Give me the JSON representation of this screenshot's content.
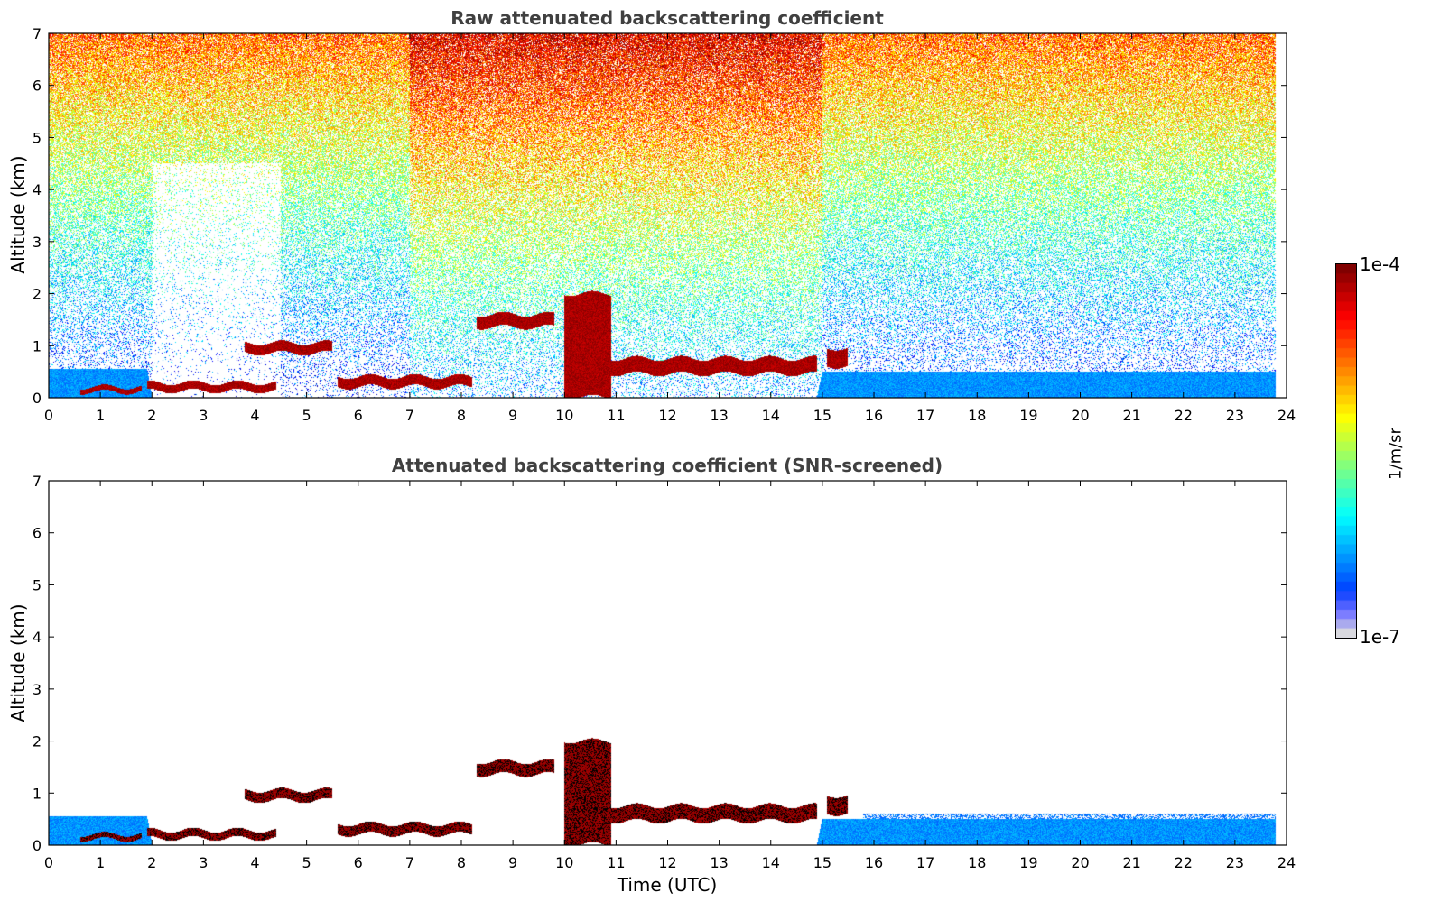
{
  "chart_data": [
    {
      "type": "heatmap",
      "title": "Raw attenuated backscattering coefficient",
      "xlabel": "",
      "ylabel": "Altitude (km)",
      "xlim": [
        0,
        24
      ],
      "ylim": [
        0,
        7
      ],
      "xticks": [
        "0",
        "1",
        "2",
        "3",
        "4",
        "5",
        "6",
        "7",
        "8",
        "9",
        "10",
        "11",
        "12",
        "13",
        "14",
        "15",
        "16",
        "17",
        "18",
        "19",
        "20",
        "21",
        "22",
        "23",
        "24"
      ],
      "yticks": [
        "0",
        "1",
        "2",
        "3",
        "4",
        "5",
        "6",
        "7"
      ],
      "data_extent_hours": [
        0,
        23.8
      ],
      "surface_layer_top_km": [
        [
          0,
          0.55
        ],
        [
          1.9,
          0.55
        ],
        [
          2.0,
          0.0
        ],
        [
          4.5,
          0.0
        ],
        [
          4.6,
          0.0
        ],
        [
          14.9,
          0.0
        ],
        [
          15.0,
          0.5
        ],
        [
          23.8,
          0.5
        ]
      ],
      "cloud_layers": [
        {
          "x": [
            0.6,
            1.8
          ],
          "base_km": 0.1,
          "top_km": 0.2
        },
        {
          "x": [
            1.9,
            4.4
          ],
          "base_km": 0.12,
          "top_km": 0.28
        },
        {
          "x": [
            3.8,
            5.5
          ],
          "base_km": 0.85,
          "top_km": 1.05
        },
        {
          "x": [
            5.6,
            8.2
          ],
          "base_km": 0.2,
          "top_km": 0.4
        },
        {
          "x": [
            8.3,
            9.8
          ],
          "base_km": 1.35,
          "top_km": 1.6
        },
        {
          "x": [
            10.0,
            10.9
          ],
          "base_km": 0.0,
          "top_km": 2.0
        },
        {
          "x": [
            10.9,
            14.9
          ],
          "base_km": 0.45,
          "top_km": 0.75
        },
        {
          "x": [
            15.1,
            15.5
          ],
          "base_km": 0.6,
          "top_km": 0.95
        }
      ],
      "noise_high_region_hours": [
        7,
        15
      ]
    },
    {
      "type": "heatmap",
      "title": "Attenuated backscattering coefficient (SNR-screened)",
      "xlabel": "Time (UTC)",
      "ylabel": "Altitude (km)",
      "xlim": [
        0,
        24
      ],
      "ylim": [
        0,
        7
      ],
      "xticks": [
        "0",
        "1",
        "2",
        "3",
        "4",
        "5",
        "6",
        "7",
        "8",
        "9",
        "10",
        "11",
        "12",
        "13",
        "14",
        "15",
        "16",
        "17",
        "18",
        "19",
        "20",
        "21",
        "22",
        "23",
        "24"
      ],
      "yticks": [
        "0",
        "1",
        "2",
        "3",
        "4",
        "5",
        "6",
        "7"
      ],
      "data_extent_hours": [
        0,
        23.8
      ],
      "screened": true
    }
  ],
  "colorbar": {
    "label": "1/m/sr",
    "max_label": "1e-4",
    "min_label": "1e-7",
    "range": [
      1e-07,
      0.0001
    ],
    "scale": "log",
    "colormap": "jet"
  }
}
